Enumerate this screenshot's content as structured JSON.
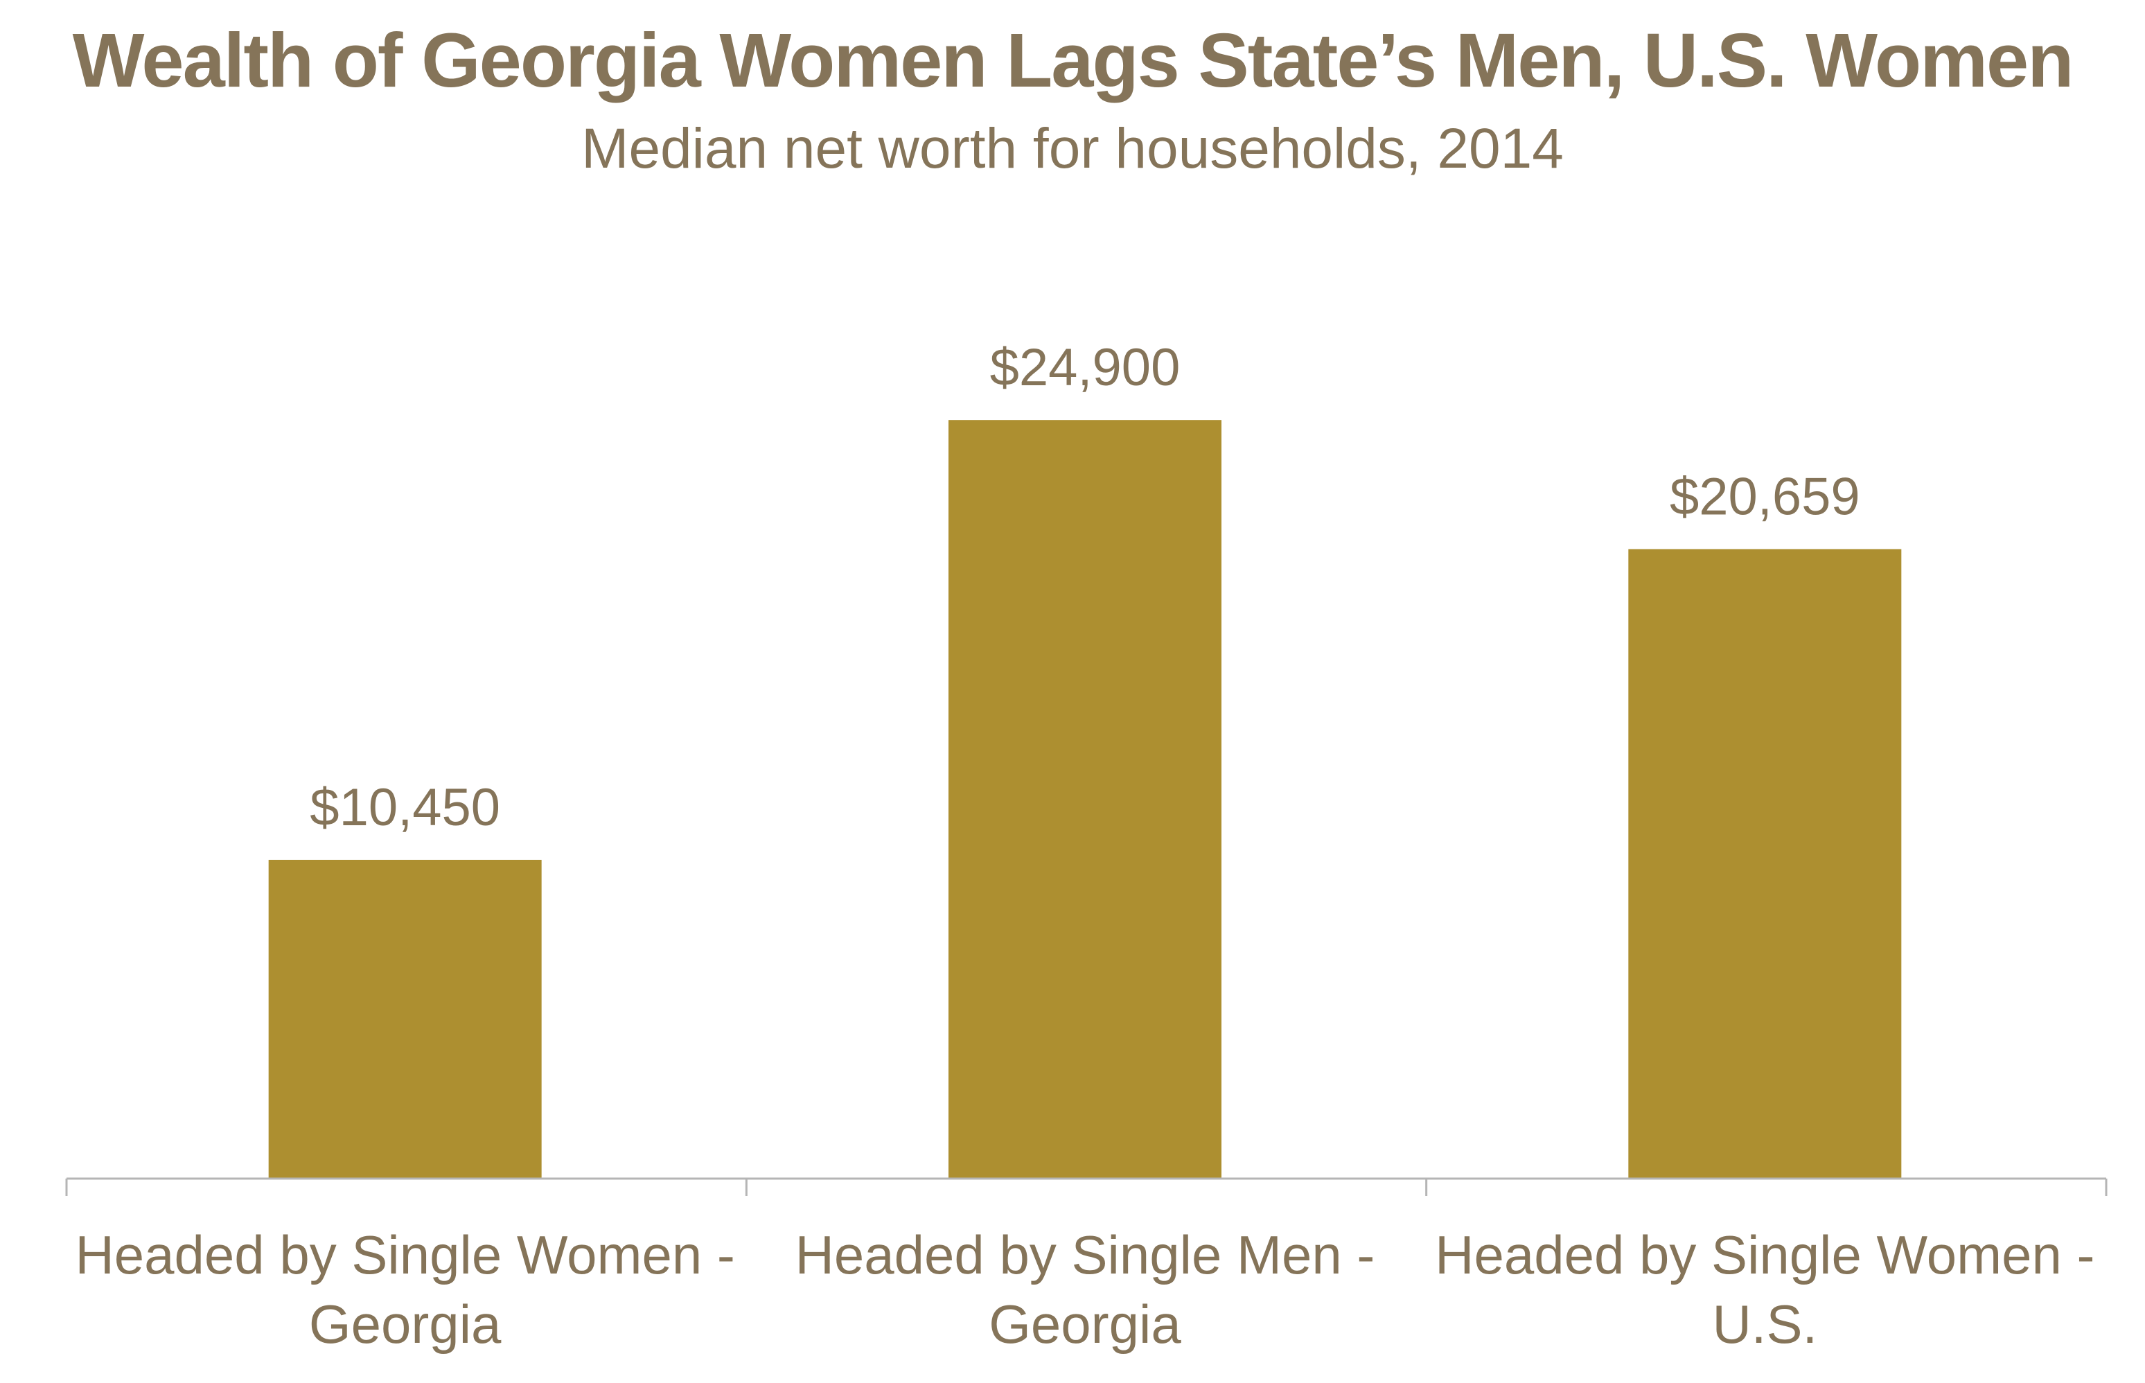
{
  "header": {
    "title": "Wealth of Georgia Women Lags State’s Men, U.S. Women",
    "subtitle": "Median net worth for households, 2014"
  },
  "colors": {
    "bar": "#AD8F30",
    "text": "#857459",
    "axis": "#B5B5B5"
  },
  "chart_data": {
    "type": "bar",
    "title": "Wealth of Georgia Women Lags State’s Men, U.S. Women",
    "subtitle": "Median net worth for households, 2014",
    "categories": [
      "Headed by Single Women - Georgia",
      "Headed by Single Men - Georgia",
      "Headed by Single Women - U.S."
    ],
    "category_lines": [
      [
        "Headed by Single Women -",
        "Georgia"
      ],
      [
        "Headed by Single Men -",
        "Georgia"
      ],
      [
        "Headed by Single Women -",
        "U.S."
      ]
    ],
    "values": [
      10450,
      24900,
      20659
    ],
    "data_labels": [
      "$10,450",
      "$24,900",
      "$20,659"
    ],
    "xlabel": "",
    "ylabel": "",
    "ylim": [
      0,
      28000
    ],
    "grid": false,
    "legend": "none"
  }
}
